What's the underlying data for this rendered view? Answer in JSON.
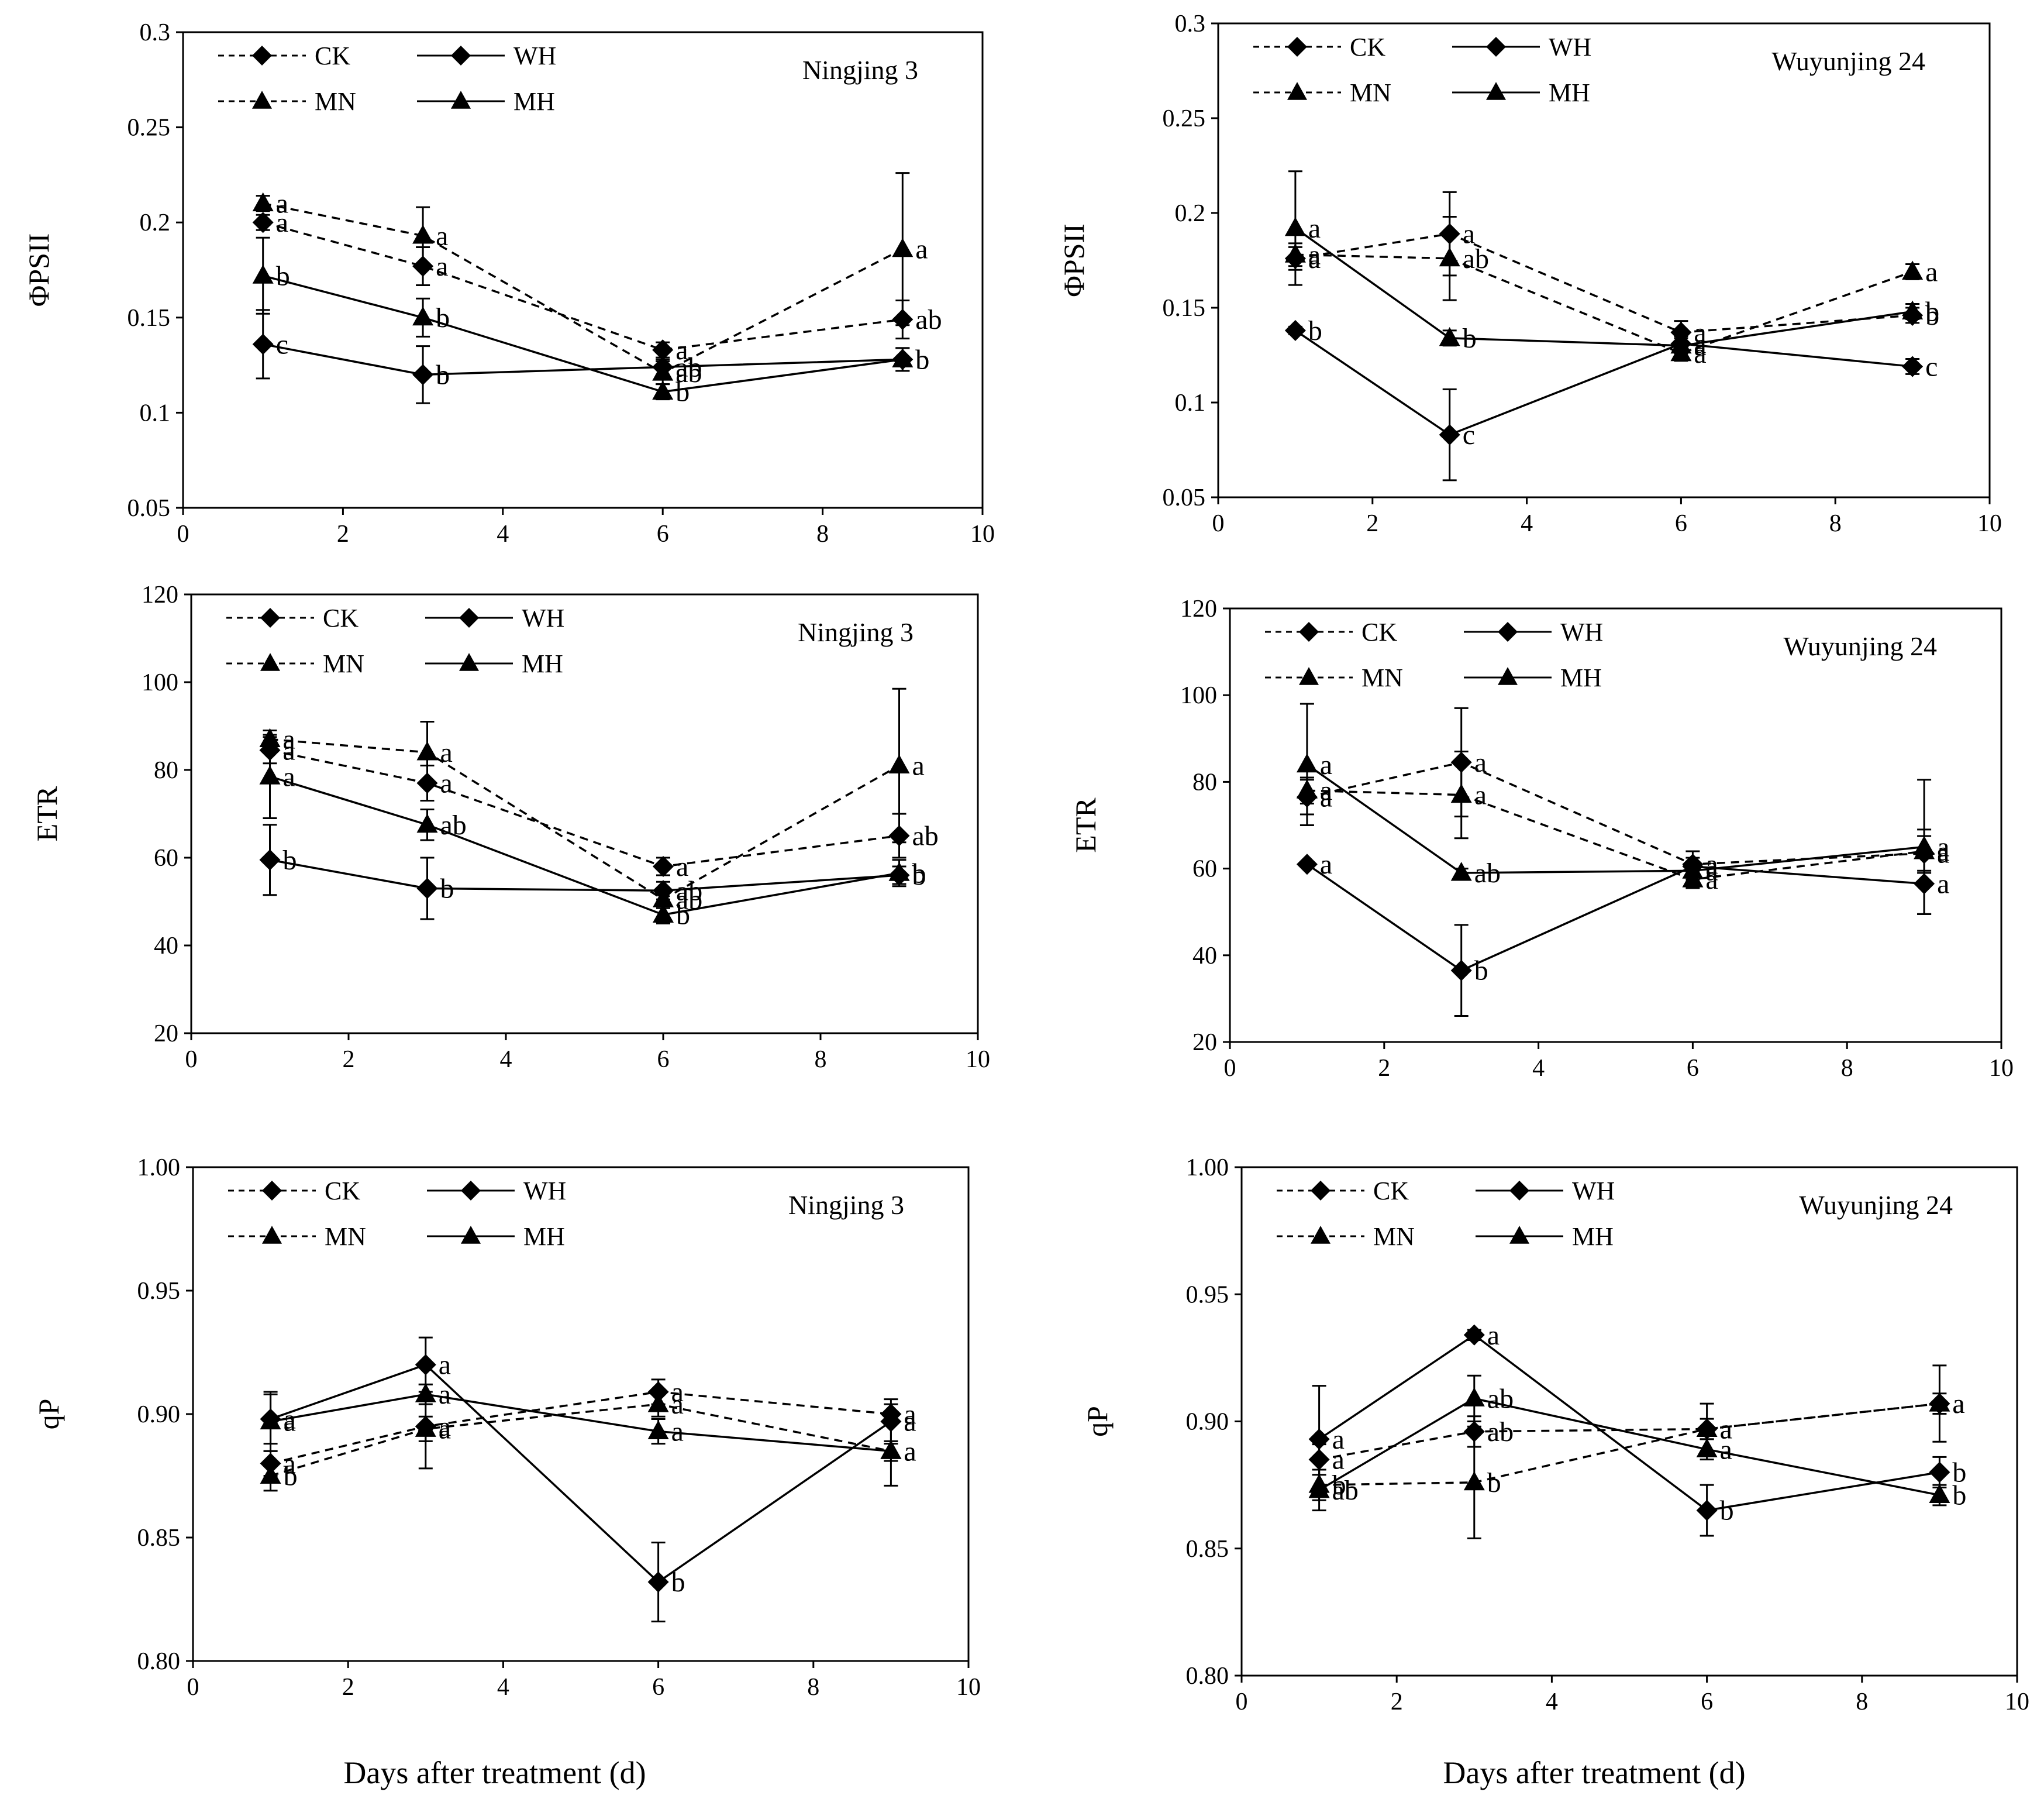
{
  "figure": {
    "xlabel_left": "Days after treatment (d)",
    "xlabel_right": "Days after treatment (d)"
  },
  "legend": {
    "CK": "CK",
    "WH": "WH",
    "MN": "MN",
    "MH": "MH"
  },
  "chart_data": [
    {
      "id": "phi-ningjing",
      "type": "line",
      "title": "Ningjing 3",
      "ylabel": "ΦPSII",
      "xlim": [
        0,
        10
      ],
      "ylim": [
        0.05,
        0.3
      ],
      "xticks": [
        "0",
        "2",
        "4",
        "6",
        "8",
        "10"
      ],
      "yticks": [
        "0.05",
        "0.1",
        "0.15",
        "0.2",
        "0.25",
        "0.3"
      ],
      "x": [
        1,
        3,
        6,
        9
      ],
      "series": [
        {
          "name": "CK",
          "values": [
            0.2,
            0.177,
            0.133,
            0.149
          ],
          "err": [
            0.004,
            0.01,
            0.004,
            0.01
          ],
          "labels": [
            "a",
            "a",
            "a",
            "ab"
          ]
        },
        {
          "name": "WH",
          "values": [
            0.136,
            0.12,
            0.124,
            0.128
          ],
          "err": [
            0.018,
            0.015,
            0.004,
            0.006
          ],
          "labels": [
            "c",
            "b",
            "ab",
            "b"
          ]
        },
        {
          "name": "MN",
          "values": [
            0.21,
            0.193,
            0.121,
            0.186
          ],
          "err": [
            0.004,
            0.015,
            0.006,
            0.04
          ],
          "labels": [
            "a",
            "a",
            "ab",
            "a"
          ]
        },
        {
          "name": "MH",
          "values": [
            0.172,
            0.15,
            0.111,
            0.128
          ],
          "err": [
            0.02,
            0.01,
            0.004,
            0.006
          ],
          "labels": [
            "b",
            "b",
            "b",
            "b"
          ]
        }
      ]
    },
    {
      "id": "phi-wuyunjing",
      "type": "line",
      "title": "Wuyunjing 24",
      "ylabel": "ΦPSII",
      "xlim": [
        0,
        10
      ],
      "ylim": [
        0.05,
        0.3
      ],
      "xticks": [
        "0",
        "2",
        "4",
        "6",
        "8",
        "10"
      ],
      "yticks": [
        "0.05",
        "0.1",
        "0.15",
        "0.2",
        "0.25",
        "0.3"
      ],
      "x": [
        1,
        3,
        6,
        9
      ],
      "series": [
        {
          "name": "CK",
          "values": [
            0.176,
            0.189,
            0.137,
            0.146
          ],
          "err": [
            0.006,
            0.022,
            0.006,
            0.004
          ],
          "labels": [
            "a",
            "a",
            "a",
            "b"
          ]
        },
        {
          "name": "WH",
          "values": [
            0.138,
            0.083,
            0.131,
            0.119
          ],
          "err": [
            0.002,
            0.024,
            0.004,
            0.004
          ],
          "labels": [
            "b",
            "c",
            "a",
            "c"
          ]
        },
        {
          "name": "MN",
          "values": [
            0.178,
            0.176,
            0.126,
            0.169
          ],
          "err": [
            0.006,
            0.022,
            0.004,
            0.004
          ],
          "labels": [
            "a",
            "ab",
            "a",
            "a"
          ]
        },
        {
          "name": "MH",
          "values": [
            0.192,
            0.134,
            0.13,
            0.148
          ],
          "err": [
            0.03,
            0.004,
            0.004,
            0.004
          ],
          "labels": [
            "a",
            "b",
            "a",
            "b"
          ]
        }
      ]
    },
    {
      "id": "etr-ningjing",
      "type": "line",
      "title": "Ningjing 3",
      "ylabel": "ETR",
      "xlim": [
        0,
        10
      ],
      "ylim": [
        20,
        120
      ],
      "xticks": [
        "0",
        "2",
        "4",
        "6",
        "8",
        "10"
      ],
      "yticks": [
        "20",
        "40",
        "60",
        "80",
        "100",
        "120"
      ],
      "x": [
        1,
        3,
        6,
        9
      ],
      "series": [
        {
          "name": "CK",
          "values": [
            84.5,
            77.0,
            58.0,
            65.0
          ],
          "err": [
            3.0,
            4.0,
            2.0,
            5.0
          ],
          "labels": [
            "a",
            "a",
            "a",
            "ab"
          ]
        },
        {
          "name": "WH",
          "values": [
            59.5,
            53.0,
            52.5,
            56.0
          ],
          "err": [
            8.0,
            7.0,
            2.0,
            2.0
          ],
          "labels": [
            "b",
            "b",
            "ab",
            "b"
          ]
        },
        {
          "name": "MN",
          "values": [
            87.0,
            84.0,
            50.5,
            81.0
          ],
          "err": [
            2.0,
            7.0,
            2.0,
            17.5
          ],
          "labels": [
            "a",
            "a",
            "ab",
            "a"
          ]
        },
        {
          "name": "MH",
          "values": [
            78.5,
            67.5,
            47.0,
            56.5
          ],
          "err": [
            9.5,
            3.5,
            2.0,
            3.0
          ],
          "labels": [
            "a",
            "ab",
            "b",
            "b"
          ]
        }
      ]
    },
    {
      "id": "etr-wuyunjing",
      "type": "line",
      "title": "Wuyunjing 24",
      "ylabel": "ETR",
      "xlim": [
        0,
        10
      ],
      "ylim": [
        20,
        120
      ],
      "xticks": [
        "0",
        "2",
        "4",
        "6",
        "8",
        "10"
      ],
      "yticks": [
        "20",
        "40",
        "60",
        "80",
        "100",
        "120"
      ],
      "x": [
        1,
        3,
        6,
        9
      ],
      "series": [
        {
          "name": "CK",
          "values": [
            76.5,
            84.5,
            61.0,
            63.5
          ],
          "err": [
            4.0,
            12.5,
            3.0,
            4.0
          ],
          "labels": [
            "a",
            "a",
            "a",
            "a"
          ]
        },
        {
          "name": "WH",
          "values": [
            61.0,
            36.5,
            60.5,
            56.5
          ],
          "err": [
            0.5,
            10.5,
            2.0,
            7.0
          ],
          "labels": [
            "a",
            "b",
            "a",
            "a"
          ]
        },
        {
          "name": "MN",
          "values": [
            78.0,
            77.0,
            57.5,
            64.0
          ],
          "err": [
            3.0,
            10.0,
            2.0,
            5.0
          ],
          "labels": [
            "a",
            "a",
            "a",
            "a"
          ]
        },
        {
          "name": "MH",
          "values": [
            84.0,
            59.0,
            59.5,
            65.0
          ],
          "err": [
            14.0,
            1.0,
            2.0,
            15.5
          ],
          "labels": [
            "a",
            "ab",
            "a",
            "a"
          ]
        }
      ]
    },
    {
      "id": "qp-ningjing",
      "type": "line",
      "title": "Ningjing 3",
      "ylabel": "qP",
      "xlim": [
        0,
        10
      ],
      "ylim": [
        0.8,
        1.0
      ],
      "xticks": [
        "0",
        "2",
        "4",
        "6",
        "8",
        "10"
      ],
      "yticks": [
        "0.80",
        "0.85",
        "0.90",
        "0.95",
        "1.00"
      ],
      "x": [
        1,
        3,
        6,
        9
      ],
      "series": [
        {
          "name": "CK",
          "values": [
            0.88,
            0.895,
            0.909,
            0.9
          ],
          "err": [
            0.005,
            0.017,
            0.005,
            0.004
          ],
          "labels": [
            "a",
            "a",
            "a",
            "a"
          ]
        },
        {
          "name": "WH",
          "values": [
            0.898,
            0.92,
            0.832,
            0.897
          ],
          "err": [
            0.01,
            0.011,
            0.016,
            0.009
          ],
          "labels": [
            "a",
            "a",
            "b",
            "a"
          ]
        },
        {
          "name": "MN",
          "values": [
            0.875,
            0.894,
            0.904,
            0.885
          ],
          "err": [
            0.006,
            0.005,
            0.005,
            0.014
          ],
          "labels": [
            "b",
            "a",
            "a",
            "a"
          ]
        },
        {
          "name": "MH",
          "values": [
            0.897,
            0.908,
            0.893,
            0.885
          ],
          "err": [
            0.012,
            0.004,
            0.005,
            0.004
          ],
          "labels": [
            "a",
            "a",
            "a",
            "a"
          ]
        }
      ]
    },
    {
      "id": "qp-wuyunjing",
      "type": "line",
      "title": "Wuyunjing 24",
      "ylabel": "qP",
      "xlim": [
        0,
        10
      ],
      "ylim": [
        0.8,
        1.0
      ],
      "xticks": [
        "0",
        "2",
        "4",
        "6",
        "8",
        "10"
      ],
      "yticks": [
        "0.80",
        "0.85",
        "0.90",
        "0.95",
        "1.00"
      ],
      "x": [
        1,
        3,
        6,
        9
      ],
      "series": [
        {
          "name": "CK",
          "values": [
            0.885,
            0.896,
            0.897,
            0.907
          ],
          "err": [
            0.006,
            0.006,
            0.01,
            0.015
          ],
          "labels": [
            "a",
            "ab",
            "a",
            "a"
          ]
        },
        {
          "name": "WH",
          "values": [
            0.893,
            0.934,
            0.865,
            0.88
          ],
          "err": [
            0.021,
            0.002,
            0.01,
            0.006
          ],
          "labels": [
            "a",
            "a",
            "b",
            "b"
          ]
        },
        {
          "name": "MN",
          "values": [
            0.875,
            0.876,
            0.897,
            0.907
          ],
          "err": [
            0.006,
            0.022,
            0.004,
            0.004
          ],
          "labels": [
            "b",
            "b",
            "a",
            "a"
          ]
        },
        {
          "name": "MH",
          "values": [
            0.873,
            0.909,
            0.889,
            0.871
          ],
          "err": [
            0.008,
            0.009,
            0.004,
            0.004
          ],
          "labels": [
            "ab",
            "ab",
            "a",
            "b"
          ]
        }
      ]
    }
  ]
}
